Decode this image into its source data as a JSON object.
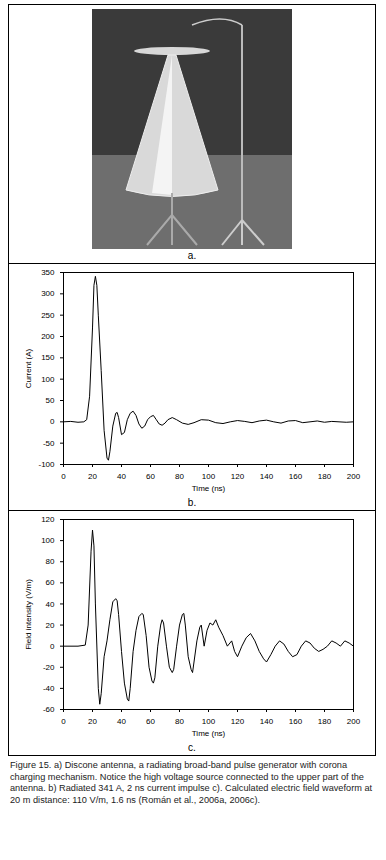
{
  "photo_label": "a.",
  "caption": "Figure 15. a) Discone antenna, a radiating broad-band pulse generator with corona charging mechanism. Notice the high voltage source connected to the upper part of the antenna. b) Radiated 341 A, 2 ns current impulse c). Calculated electric field waveform at 20 m distance: 110 V/m, 1.6 ns (Román et al., 2006a, 2006c).",
  "chart_data": [
    {
      "type": "line",
      "panel_label": "b.",
      "xlabel": "Time (ns)",
      "ylabel": "Current (A)",
      "color": "#000000",
      "xlim": [
        0,
        200
      ],
      "xticks": [
        0,
        20,
        40,
        60,
        80,
        100,
        120,
        140,
        160,
        180,
        200
      ],
      "ylim": [
        -100,
        350
      ],
      "yticks": [
        -100,
        -50,
        0,
        50,
        100,
        150,
        200,
        250,
        300,
        350
      ],
      "x": [
        0,
        5,
        10,
        14,
        16,
        18,
        20,
        21,
        22,
        23,
        24,
        26,
        28,
        30,
        31,
        32,
        34,
        36,
        37,
        38,
        40,
        42,
        44,
        46,
        48,
        50,
        52,
        54,
        56,
        58,
        60,
        62,
        64,
        66,
        68,
        70,
        72,
        75,
        78,
        82,
        86,
        90,
        95,
        100,
        105,
        110,
        115,
        120,
        125,
        130,
        135,
        140,
        145,
        150,
        155,
        160,
        165,
        170,
        175,
        180,
        185,
        190,
        195,
        200
      ],
      "values": [
        0,
        1,
        -1,
        0,
        5,
        60,
        220,
        320,
        341,
        320,
        250,
        120,
        -20,
        -85,
        -90,
        -70,
        -10,
        20,
        22,
        10,
        -30,
        -25,
        5,
        20,
        25,
        15,
        -5,
        -15,
        -10,
        5,
        12,
        15,
        5,
        -5,
        -8,
        -3,
        5,
        10,
        5,
        -3,
        -6,
        -2,
        5,
        4,
        -2,
        -4,
        0,
        3,
        1,
        -2,
        2,
        4,
        0,
        -3,
        2,
        3,
        -2,
        0,
        2,
        -1,
        1,
        0,
        -1,
        0
      ]
    },
    {
      "type": "line",
      "panel_label": "c.",
      "xlabel": "Time (ns)",
      "ylabel": "Field intensity (V/m)",
      "color": "#000000",
      "xlim": [
        0,
        200
      ],
      "xticks": [
        0,
        20,
        40,
        60,
        80,
        100,
        120,
        140,
        160,
        180,
        200
      ],
      "ylim": [
        -60,
        120
      ],
      "yticks": [
        -60,
        -40,
        -20,
        0,
        20,
        40,
        60,
        80,
        100,
        120
      ],
      "x": [
        0,
        10,
        15,
        17,
        19,
        20,
        21,
        22,
        24,
        25,
        26,
        28,
        30,
        32,
        34,
        36,
        37,
        38,
        40,
        42,
        44,
        45,
        46,
        48,
        50,
        52,
        54,
        55,
        57,
        59,
        61,
        62,
        63,
        65,
        67,
        68,
        69,
        71,
        73,
        75,
        76,
        78,
        80,
        82,
        83,
        84,
        86,
        88,
        89,
        90,
        92,
        94,
        95,
        97,
        99,
        101,
        103,
        105,
        107,
        110,
        113,
        116,
        118,
        120,
        123,
        126,
        129,
        132,
        135,
        138,
        140,
        143,
        146,
        149,
        152,
        155,
        158,
        161,
        164,
        167,
        170,
        173,
        176,
        179,
        182,
        185,
        188,
        191,
        194,
        197,
        200
      ],
      "values": [
        0,
        0,
        1,
        20,
        90,
        110,
        95,
        40,
        -40,
        -55,
        -45,
        -10,
        5,
        25,
        42,
        45,
        43,
        30,
        -5,
        -35,
        -50,
        -52,
        -40,
        -5,
        15,
        28,
        31,
        30,
        10,
        -20,
        -33,
        -35,
        -30,
        0,
        20,
        25,
        22,
        0,
        -20,
        -25,
        -22,
        0,
        20,
        30,
        31,
        20,
        -10,
        -22,
        -25,
        -15,
        5,
        18,
        20,
        0,
        15,
        22,
        20,
        25,
        18,
        10,
        0,
        5,
        -5,
        -10,
        0,
        8,
        12,
        5,
        -5,
        -12,
        -15,
        -8,
        0,
        5,
        2,
        -5,
        -10,
        -8,
        0,
        5,
        3,
        -2,
        -5,
        -3,
        0,
        5,
        3,
        0,
        5,
        3,
        0
      ]
    }
  ]
}
